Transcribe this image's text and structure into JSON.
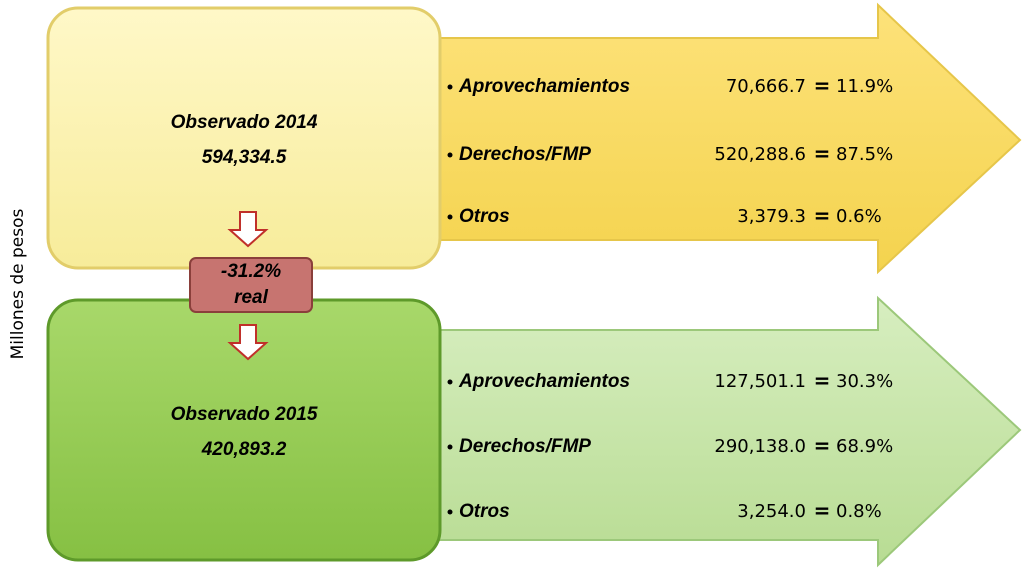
{
  "axis_label": "Millones de pesos",
  "equals_sign": "=",
  "change": {
    "value": "-31.2%",
    "label": "real"
  },
  "blocks": [
    {
      "title": "Observado 2014",
      "total": "594,334.5",
      "items": [
        {
          "name": "Aprovechamientos",
          "value": "70,666.7",
          "share": "11.9%"
        },
        {
          "name": "Derechos/FMP",
          "value": "520,288.6",
          "share": "87.5%"
        },
        {
          "name": "Otros",
          "value": "3,379.3",
          "share": "0.6%"
        }
      ]
    },
    {
      "title": "Observado 2015",
      "total": "420,893.2",
      "items": [
        {
          "name": "Aprovechamientos",
          "value": "127,501.1",
          "share": "30.3%"
        },
        {
          "name": "Derechos/FMP",
          "value": "290,138.0",
          "share": "68.9%"
        },
        {
          "name": "Otros",
          "value": "3,254.0",
          "share": "0.8%"
        }
      ]
    }
  ]
}
